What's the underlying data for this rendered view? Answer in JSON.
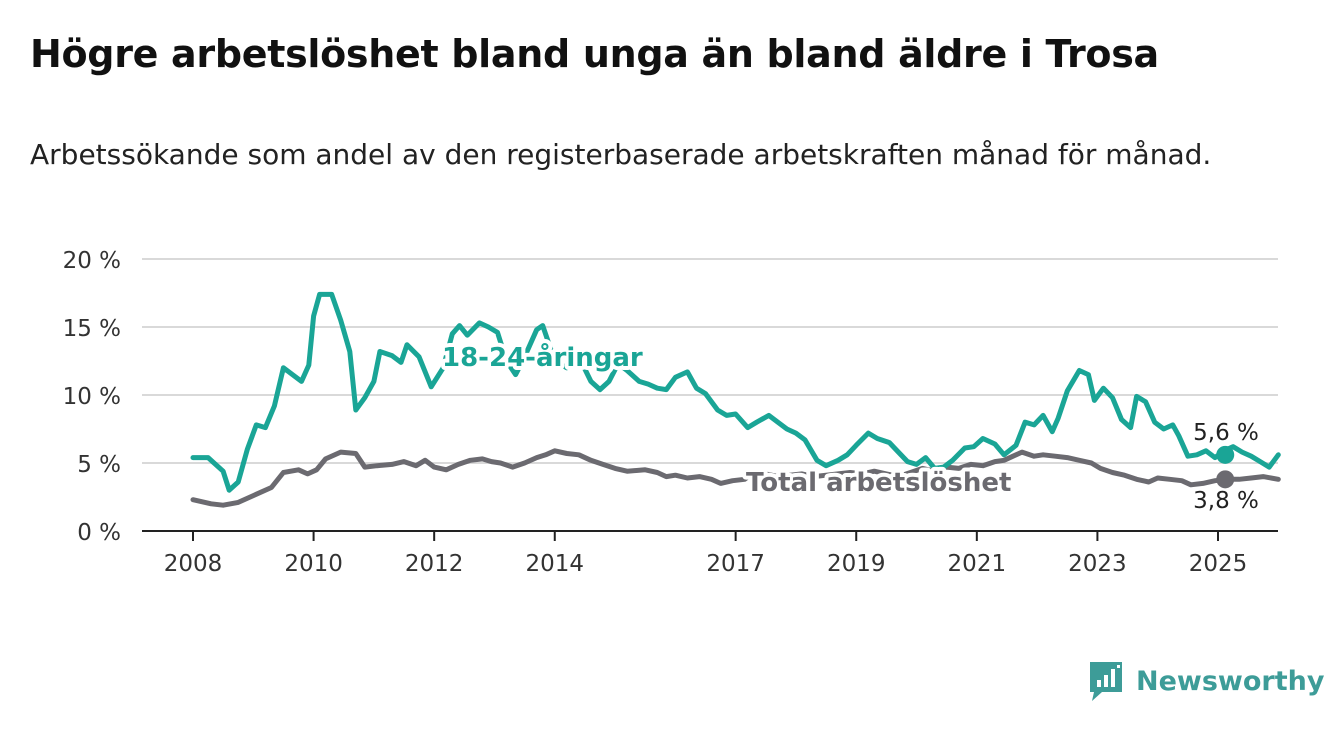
{
  "title": "Högre arbetslöshet bland unga än bland äldre i Trosa",
  "subtitle": "Arbetssökande som andel av den registerbaserade arbetskraften månad för månad.",
  "brand": {
    "name": "Newsworthy",
    "icon": "newsworthy-logo-icon",
    "color": "#3d9c98"
  },
  "chart_data": {
    "type": "line",
    "ylim": [
      0,
      20
    ],
    "y_ticks": [
      0,
      5,
      10,
      15,
      20
    ],
    "y_tick_labels": [
      "0 %",
      "5 %",
      "10 %",
      "15 %",
      "20 %"
    ],
    "x_range": [
      2007.3,
      2026.0
    ],
    "x_ticks": [
      2008,
      2010,
      2012,
      2014,
      2017,
      2019,
      2021,
      2023,
      2025
    ],
    "x_tick_labels": [
      "2008",
      "2010",
      "2012",
      "2014",
      "2017",
      "2019",
      "2021",
      "2023",
      "2025"
    ],
    "grid": true,
    "legend": "inline labels",
    "series": [
      {
        "name": "18-24-åringar",
        "color": "#1aa596",
        "last_value_label": "5,6 %",
        "points": [
          [
            2008.0,
            5.4
          ],
          [
            2008.25,
            5.4
          ],
          [
            2008.5,
            4.4
          ],
          [
            2008.6,
            3.0
          ],
          [
            2008.75,
            3.6
          ],
          [
            2008.9,
            6.0
          ],
          [
            2009.05,
            7.8
          ],
          [
            2009.2,
            7.6
          ],
          [
            2009.35,
            9.2
          ],
          [
            2009.5,
            12.0
          ],
          [
            2009.65,
            11.5
          ],
          [
            2009.8,
            11.0
          ],
          [
            2009.92,
            12.2
          ],
          [
            2010.0,
            15.8
          ],
          [
            2010.1,
            17.4
          ],
          [
            2010.3,
            17.4
          ],
          [
            2010.45,
            15.5
          ],
          [
            2010.6,
            13.2
          ],
          [
            2010.7,
            8.9
          ],
          [
            2010.85,
            9.8
          ],
          [
            2011.0,
            11.0
          ],
          [
            2011.1,
            13.2
          ],
          [
            2011.3,
            12.9
          ],
          [
            2011.45,
            12.4
          ],
          [
            2011.55,
            13.7
          ],
          [
            2011.75,
            12.8
          ],
          [
            2011.95,
            10.6
          ],
          [
            2012.15,
            12.0
          ],
          [
            2012.3,
            14.5
          ],
          [
            2012.42,
            15.1
          ],
          [
            2012.55,
            14.4
          ],
          [
            2012.75,
            15.3
          ],
          [
            2012.9,
            15.0
          ],
          [
            2013.05,
            14.6
          ],
          [
            2013.2,
            12.5
          ],
          [
            2013.35,
            11.5
          ],
          [
            2013.5,
            12.8
          ],
          [
            2013.7,
            14.8
          ],
          [
            2013.8,
            15.1
          ],
          [
            2014.0,
            12.5
          ],
          [
            2014.2,
            12.0
          ],
          [
            2014.4,
            12.8
          ],
          [
            2014.6,
            11.0
          ],
          [
            2014.75,
            10.4
          ],
          [
            2014.9,
            11.0
          ],
          [
            2015.05,
            12.3
          ],
          [
            2015.2,
            11.8
          ],
          [
            2015.4,
            11.0
          ],
          [
            2015.55,
            10.8
          ],
          [
            2015.7,
            10.5
          ],
          [
            2015.85,
            10.4
          ],
          [
            2016.0,
            11.3
          ],
          [
            2016.2,
            11.7
          ],
          [
            2016.35,
            10.5
          ],
          [
            2016.5,
            10.1
          ],
          [
            2016.7,
            8.9
          ],
          [
            2016.85,
            8.5
          ],
          [
            2017.0,
            8.6
          ],
          [
            2017.2,
            7.6
          ],
          [
            2017.35,
            8.0
          ],
          [
            2017.55,
            8.5
          ],
          [
            2017.7,
            8.0
          ],
          [
            2017.85,
            7.5
          ],
          [
            2018.0,
            7.2
          ],
          [
            2018.15,
            6.7
          ],
          [
            2018.35,
            5.2
          ],
          [
            2018.5,
            4.8
          ],
          [
            2018.7,
            5.2
          ],
          [
            2018.85,
            5.6
          ],
          [
            2019.0,
            6.3
          ],
          [
            2019.2,
            7.2
          ],
          [
            2019.35,
            6.8
          ],
          [
            2019.55,
            6.5
          ],
          [
            2019.7,
            5.8
          ],
          [
            2019.85,
            5.1
          ],
          [
            2020.0,
            4.9
          ],
          [
            2020.15,
            5.4
          ],
          [
            2020.3,
            4.6
          ],
          [
            2020.45,
            4.7
          ],
          [
            2020.6,
            5.2
          ],
          [
            2020.8,
            6.1
          ],
          [
            2020.95,
            6.2
          ],
          [
            2021.1,
            6.8
          ],
          [
            2021.3,
            6.4
          ],
          [
            2021.45,
            5.6
          ],
          [
            2021.65,
            6.3
          ],
          [
            2021.8,
            8.0
          ],
          [
            2021.95,
            7.8
          ],
          [
            2022.1,
            8.5
          ],
          [
            2022.25,
            7.3
          ],
          [
            2022.35,
            8.3
          ],
          [
            2022.5,
            10.3
          ],
          [
            2022.7,
            11.8
          ],
          [
            2022.85,
            11.5
          ],
          [
            2022.95,
            9.6
          ],
          [
            2023.1,
            10.5
          ],
          [
            2023.25,
            9.8
          ],
          [
            2023.4,
            8.2
          ],
          [
            2023.55,
            7.6
          ],
          [
            2023.65,
            9.9
          ],
          [
            2023.8,
            9.5
          ],
          [
            2023.95,
            8.0
          ],
          [
            2024.1,
            7.5
          ],
          [
            2024.25,
            7.8
          ],
          [
            2024.35,
            7.0
          ],
          [
            2024.5,
            5.5
          ],
          [
            2024.65,
            5.6
          ],
          [
            2024.8,
            5.9
          ],
          [
            2024.95,
            5.4
          ],
          [
            2025.1,
            5.9
          ],
          [
            2025.25,
            6.2
          ],
          [
            2025.4,
            5.8
          ],
          [
            2025.55,
            5.5
          ],
          [
            2025.7,
            5.1
          ],
          [
            2025.85,
            4.7
          ],
          [
            2026.0,
            5.6
          ]
        ]
      },
      {
        "name": "Total arbetslöshet",
        "color": "#6b6a70",
        "last_value_label": "3,8 %",
        "points": [
          [
            2008.0,
            2.3
          ],
          [
            2008.3,
            2.0
          ],
          [
            2008.5,
            1.9
          ],
          [
            2008.75,
            2.1
          ],
          [
            2009.0,
            2.6
          ],
          [
            2009.3,
            3.2
          ],
          [
            2009.5,
            4.3
          ],
          [
            2009.75,
            4.5
          ],
          [
            2009.9,
            4.2
          ],
          [
            2010.05,
            4.5
          ],
          [
            2010.2,
            5.3
          ],
          [
            2010.45,
            5.8
          ],
          [
            2010.7,
            5.7
          ],
          [
            2010.85,
            4.7
          ],
          [
            2011.05,
            4.8
          ],
          [
            2011.3,
            4.9
          ],
          [
            2011.5,
            5.1
          ],
          [
            2011.7,
            4.8
          ],
          [
            2011.85,
            5.2
          ],
          [
            2012.0,
            4.7
          ],
          [
            2012.2,
            4.5
          ],
          [
            2012.4,
            4.9
          ],
          [
            2012.6,
            5.2
          ],
          [
            2012.8,
            5.3
          ],
          [
            2012.95,
            5.1
          ],
          [
            2013.1,
            5.0
          ],
          [
            2013.3,
            4.7
          ],
          [
            2013.5,
            5.0
          ],
          [
            2013.7,
            5.4
          ],
          [
            2013.85,
            5.6
          ],
          [
            2014.0,
            5.9
          ],
          [
            2014.2,
            5.7
          ],
          [
            2014.4,
            5.6
          ],
          [
            2014.6,
            5.2
          ],
          [
            2014.8,
            4.9
          ],
          [
            2015.0,
            4.6
          ],
          [
            2015.2,
            4.4
          ],
          [
            2015.5,
            4.5
          ],
          [
            2015.7,
            4.3
          ],
          [
            2015.85,
            4.0
          ],
          [
            2016.0,
            4.1
          ],
          [
            2016.2,
            3.9
          ],
          [
            2016.4,
            4.0
          ],
          [
            2016.6,
            3.8
          ],
          [
            2016.75,
            3.5
          ],
          [
            2016.95,
            3.7
          ],
          [
            2017.15,
            3.8
          ],
          [
            2017.3,
            4.3
          ],
          [
            2017.5,
            4.2
          ],
          [
            2017.7,
            4.0
          ],
          [
            2017.9,
            4.1
          ],
          [
            2018.1,
            4.2
          ],
          [
            2018.3,
            4.0
          ],
          [
            2018.5,
            4.1
          ],
          [
            2018.7,
            4.2
          ],
          [
            2018.9,
            4.3
          ],
          [
            2019.1,
            4.2
          ],
          [
            2019.3,
            4.4
          ],
          [
            2019.5,
            4.2
          ],
          [
            2019.7,
            4.0
          ],
          [
            2019.9,
            4.3
          ],
          [
            2020.1,
            4.6
          ],
          [
            2020.3,
            4.4
          ],
          [
            2020.5,
            4.7
          ],
          [
            2020.7,
            4.6
          ],
          [
            2020.9,
            4.9
          ],
          [
            2021.1,
            4.8
          ],
          [
            2021.3,
            5.1
          ],
          [
            2021.45,
            5.2
          ],
          [
            2021.6,
            5.5
          ],
          [
            2021.75,
            5.8
          ],
          [
            2021.95,
            5.5
          ],
          [
            2022.1,
            5.6
          ],
          [
            2022.3,
            5.5
          ],
          [
            2022.5,
            5.4
          ],
          [
            2022.7,
            5.2
          ],
          [
            2022.9,
            5.0
          ],
          [
            2023.05,
            4.6
          ],
          [
            2023.25,
            4.3
          ],
          [
            2023.45,
            4.1
          ],
          [
            2023.65,
            3.8
          ],
          [
            2023.85,
            3.6
          ],
          [
            2024.0,
            3.9
          ],
          [
            2024.2,
            3.8
          ],
          [
            2024.4,
            3.7
          ],
          [
            2024.55,
            3.4
          ],
          [
            2024.75,
            3.5
          ],
          [
            2024.95,
            3.7
          ],
          [
            2025.15,
            3.8
          ],
          [
            2025.35,
            3.8
          ],
          [
            2025.55,
            3.9
          ],
          [
            2025.75,
            4.0
          ],
          [
            2026.0,
            3.8
          ]
        ]
      }
    ]
  }
}
